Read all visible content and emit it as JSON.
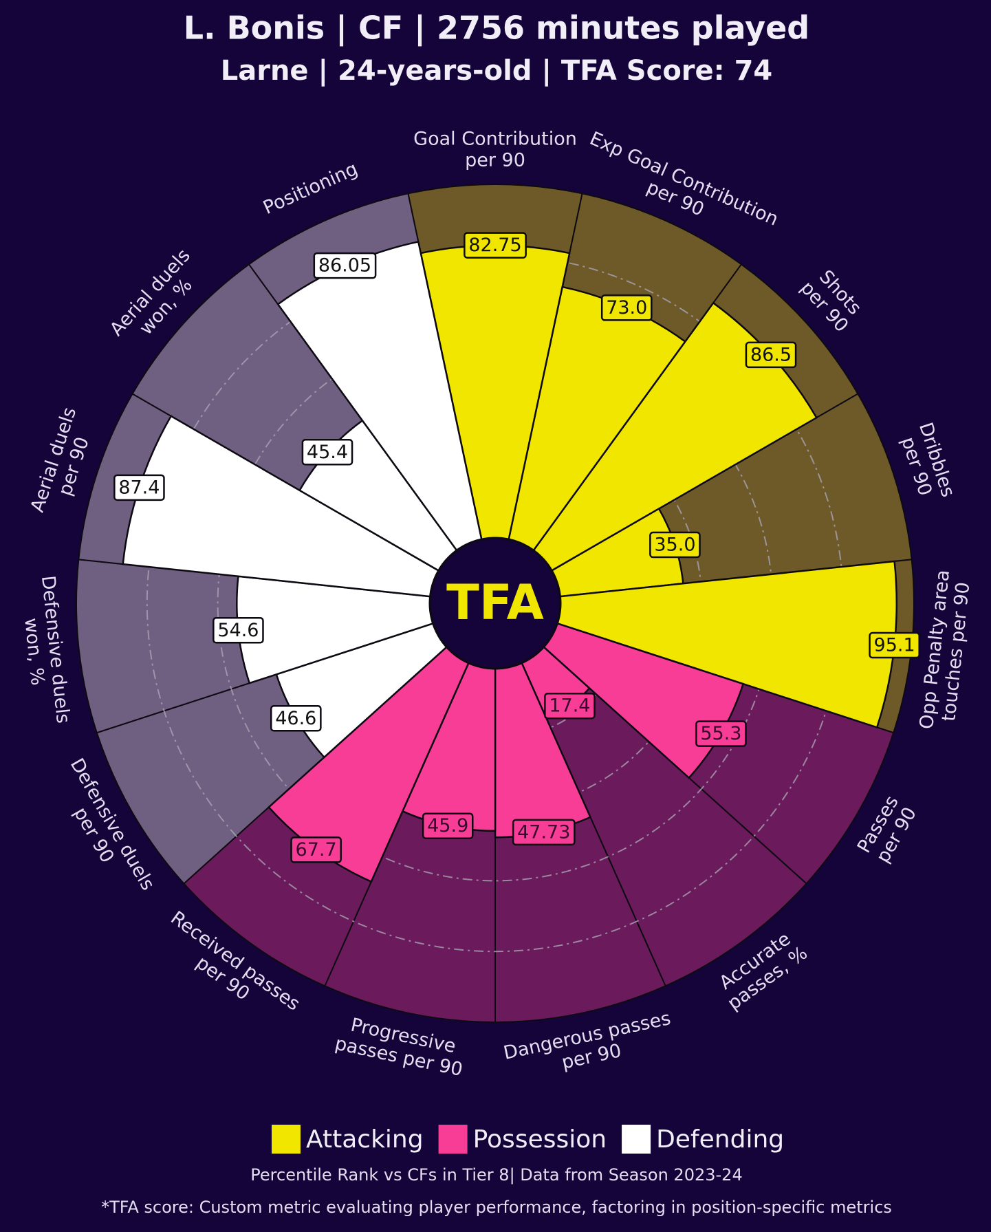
{
  "chart_data": {
    "type": "pizza",
    "title": "L. Bonis | CF | 2756 minutes played",
    "subtitle": "Larne | 24-years-old | TFA Score: 74",
    "center_text": "TFA",
    "rlim": [
      0,
      100
    ],
    "rticks": [
      20,
      40,
      60,
      80
    ],
    "series": [
      {
        "name": "Attacking",
        "color": "#f0e600",
        "background": "#6e5a29",
        "categories": [
          "Goal Contribution\nper 90",
          "Exp Goal Contribution\nper 90",
          "Shots\nper 90",
          "Dribbles\nper 90",
          "Opp Penalty area\ntouches per 90"
        ],
        "values": [
          82.75,
          73.0,
          86.5,
          35.0,
          95.1
        ],
        "value_labels": [
          "82.75",
          "73.0",
          "86.5",
          "35.0",
          "95.1"
        ]
      },
      {
        "name": "Possession",
        "color": "#f73d96",
        "background": "#6b1a5c",
        "categories": [
          "Passes\nper 90",
          "Accurate\npasses, %",
          "Dangerous passes\nper 90",
          "Progressive\npasses per 90",
          "Received passes\nper 90"
        ],
        "values": [
          55.3,
          17.4,
          47.73,
          45.9,
          67.7
        ],
        "value_labels": [
          "55.3",
          "17.4",
          "47.73",
          "45.9",
          "67.7"
        ]
      },
      {
        "name": "Defending",
        "color": "#ffffff",
        "background": "#6f5f80",
        "categories": [
          "Defensive duels\nper 90",
          "Defensive duels\nwon, %",
          "Aerial duels\nper 90",
          "Aerial duels\nwon, %",
          "Positioning"
        ],
        "values": [
          46.6,
          54.6,
          87.4,
          45.4,
          86.05
        ],
        "value_labels": [
          "46.6",
          "54.6",
          "87.4",
          "45.4",
          "86.05"
        ]
      }
    ],
    "footnote": "Percentile Rank vs CFs in Tier 8| Data from Season 2023-24",
    "footnote2": "*TFA score: Custom metric evaluating player performance, factoring in position-specific metrics"
  }
}
